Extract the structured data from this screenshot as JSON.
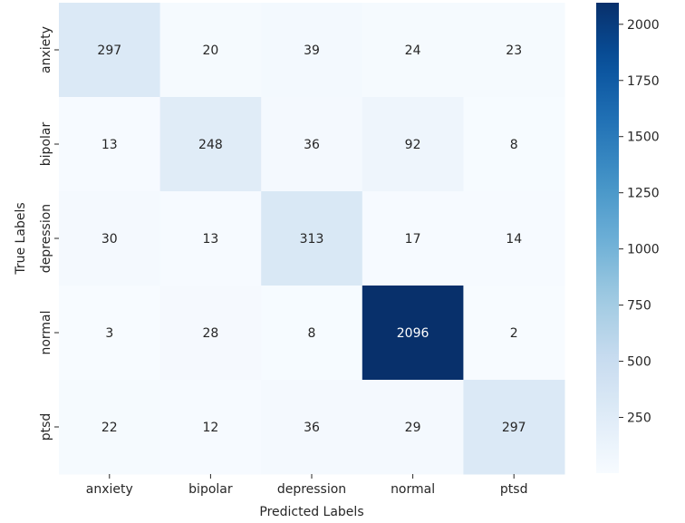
{
  "chart_data": {
    "type": "heatmap",
    "title": "",
    "xlabel": "Predicted Labels",
    "ylabel": "True Labels",
    "x_categories": [
      "anxiety",
      "bipolar",
      "depression",
      "normal",
      "ptsd"
    ],
    "y_categories": [
      "anxiety",
      "bipolar",
      "depression",
      "normal",
      "ptsd"
    ],
    "values": [
      [
        297,
        20,
        39,
        24,
        23
      ],
      [
        13,
        248,
        36,
        92,
        8
      ],
      [
        30,
        13,
        313,
        17,
        14
      ],
      [
        3,
        28,
        8,
        2096,
        2
      ],
      [
        22,
        12,
        36,
        29,
        297
      ]
    ],
    "colormap": "Blues",
    "value_range": [
      2,
      2096
    ],
    "colorbar_ticks": [
      250,
      500,
      750,
      1000,
      1250,
      1500,
      1750,
      2000
    ],
    "colorbar_tick_labels": [
      "250",
      "500",
      "750",
      "1000",
      "1250",
      "1500",
      "1750",
      "2000"
    ],
    "colors": {
      "low": "#f7fbff",
      "high": "#08306b",
      "dark_text": "#262626",
      "light_text": "#ffffff"
    }
  }
}
